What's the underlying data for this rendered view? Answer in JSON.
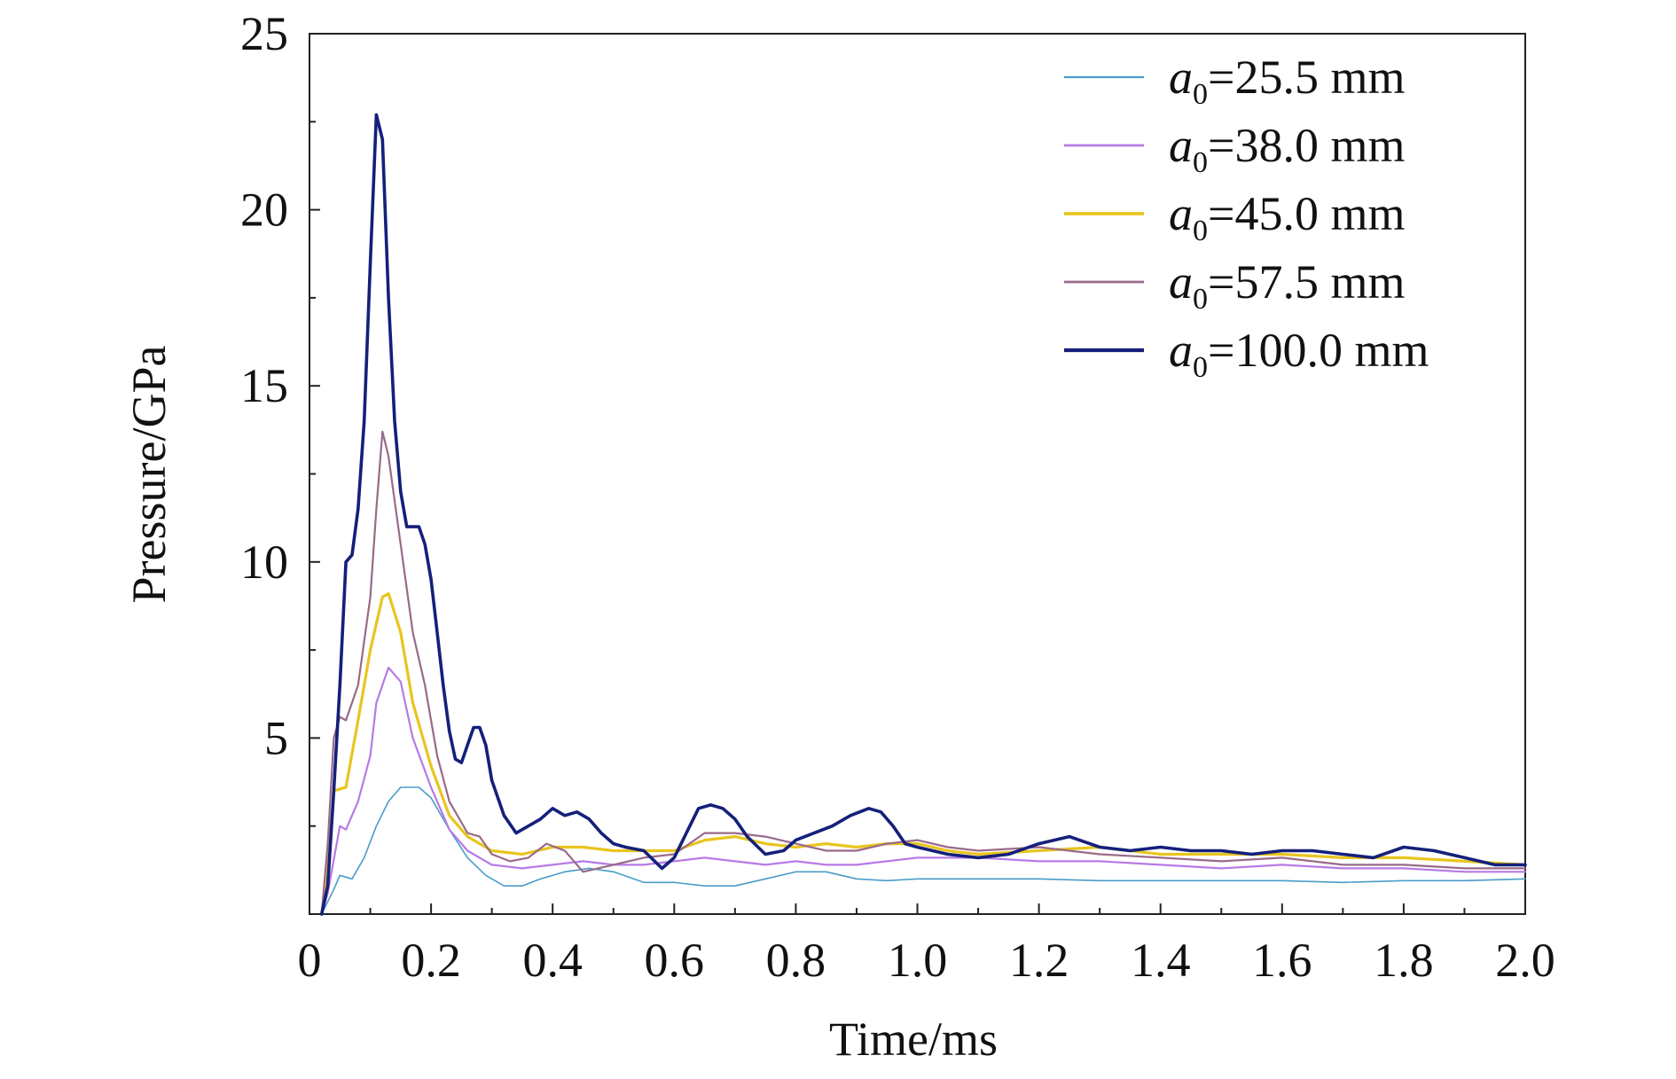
{
  "chart_data": {
    "type": "line",
    "xlabel": "Time/ms",
    "ylabel": "Pressure/GPa",
    "xlim": [
      0,
      2.0
    ],
    "ylim": [
      0,
      25
    ],
    "x_ticks": [
      "0",
      "0.2",
      "0.4",
      "0.6",
      "0.8",
      "1.0",
      "1.2",
      "1.4",
      "1.6",
      "1.8",
      "2.0"
    ],
    "y_ticks": [
      "5",
      "10",
      "15",
      "20",
      "25"
    ],
    "y_tick_values": [
      5,
      10,
      15,
      20,
      25
    ],
    "x_tick_values": [
      0,
      0.2,
      0.4,
      0.6,
      0.8,
      1.0,
      1.2,
      1.4,
      1.6,
      1.8,
      2.0
    ],
    "legend_position": "top-right",
    "grid": false,
    "series": [
      {
        "name": "=25.5 mm",
        "var": "a",
        "sub": "0",
        "color": "#4a9cc8",
        "width": 1.6,
        "points": [
          [
            0.02,
            0
          ],
          [
            0.04,
            0.7
          ],
          [
            0.05,
            1.1
          ],
          [
            0.07,
            1.0
          ],
          [
            0.09,
            1.6
          ],
          [
            0.11,
            2.5
          ],
          [
            0.13,
            3.2
          ],
          [
            0.15,
            3.6
          ],
          [
            0.18,
            3.6
          ],
          [
            0.2,
            3.3
          ],
          [
            0.23,
            2.4
          ],
          [
            0.26,
            1.6
          ],
          [
            0.29,
            1.1
          ],
          [
            0.32,
            0.8
          ],
          [
            0.35,
            0.8
          ],
          [
            0.38,
            1.0
          ],
          [
            0.42,
            1.2
          ],
          [
            0.46,
            1.3
          ],
          [
            0.5,
            1.2
          ],
          [
            0.55,
            0.9
          ],
          [
            0.6,
            0.9
          ],
          [
            0.65,
            0.8
          ],
          [
            0.7,
            0.8
          ],
          [
            0.75,
            1.0
          ],
          [
            0.8,
            1.2
          ],
          [
            0.85,
            1.2
          ],
          [
            0.9,
            1.0
          ],
          [
            0.95,
            0.95
          ],
          [
            1.0,
            1.0
          ],
          [
            1.1,
            1.0
          ],
          [
            1.2,
            1.0
          ],
          [
            1.3,
            0.95
          ],
          [
            1.4,
            0.95
          ],
          [
            1.5,
            0.95
          ],
          [
            1.6,
            0.95
          ],
          [
            1.7,
            0.9
          ],
          [
            1.8,
            0.95
          ],
          [
            1.9,
            0.95
          ],
          [
            2.0,
            1.0
          ]
        ]
      },
      {
        "name": "=38.0 mm",
        "var": "a",
        "sub": "0",
        "color": "#b87ae6",
        "width": 2.2,
        "points": [
          [
            0.02,
            0
          ],
          [
            0.03,
            0.6
          ],
          [
            0.05,
            2.5
          ],
          [
            0.06,
            2.4
          ],
          [
            0.08,
            3.2
          ],
          [
            0.1,
            4.5
          ],
          [
            0.11,
            6.0
          ],
          [
            0.13,
            7.0
          ],
          [
            0.15,
            6.6
          ],
          [
            0.17,
            5.0
          ],
          [
            0.2,
            3.6
          ],
          [
            0.23,
            2.4
          ],
          [
            0.26,
            1.8
          ],
          [
            0.3,
            1.4
          ],
          [
            0.35,
            1.3
          ],
          [
            0.4,
            1.4
          ],
          [
            0.45,
            1.5
          ],
          [
            0.5,
            1.4
          ],
          [
            0.55,
            1.4
          ],
          [
            0.6,
            1.5
          ],
          [
            0.65,
            1.6
          ],
          [
            0.7,
            1.5
          ],
          [
            0.75,
            1.4
          ],
          [
            0.8,
            1.5
          ],
          [
            0.85,
            1.4
          ],
          [
            0.9,
            1.4
          ],
          [
            0.95,
            1.5
          ],
          [
            1.0,
            1.6
          ],
          [
            1.1,
            1.6
          ],
          [
            1.2,
            1.5
          ],
          [
            1.3,
            1.5
          ],
          [
            1.4,
            1.4
          ],
          [
            1.5,
            1.3
          ],
          [
            1.6,
            1.4
          ],
          [
            1.7,
            1.3
          ],
          [
            1.8,
            1.3
          ],
          [
            1.9,
            1.2
          ],
          [
            2.0,
            1.2
          ]
        ]
      },
      {
        "name": "=45.0 mm",
        "var": "a",
        "sub": "0",
        "color": "#e8c51f",
        "width": 3.2,
        "points": [
          [
            0.02,
            0
          ],
          [
            0.03,
            1.2
          ],
          [
            0.04,
            3.5
          ],
          [
            0.06,
            3.6
          ],
          [
            0.08,
            5.5
          ],
          [
            0.1,
            7.5
          ],
          [
            0.12,
            9.0
          ],
          [
            0.13,
            9.1
          ],
          [
            0.15,
            8.0
          ],
          [
            0.17,
            6.0
          ],
          [
            0.2,
            4.2
          ],
          [
            0.23,
            2.8
          ],
          [
            0.26,
            2.2
          ],
          [
            0.3,
            1.8
          ],
          [
            0.35,
            1.7
          ],
          [
            0.4,
            1.9
          ],
          [
            0.45,
            1.9
          ],
          [
            0.5,
            1.8
          ],
          [
            0.55,
            1.8
          ],
          [
            0.6,
            1.8
          ],
          [
            0.65,
            2.1
          ],
          [
            0.7,
            2.2
          ],
          [
            0.75,
            2.0
          ],
          [
            0.8,
            1.9
          ],
          [
            0.85,
            2.0
          ],
          [
            0.9,
            1.9
          ],
          [
            0.95,
            2.0
          ],
          [
            1.0,
            2.0
          ],
          [
            1.05,
            1.8
          ],
          [
            1.1,
            1.7
          ],
          [
            1.2,
            1.8
          ],
          [
            1.3,
            1.9
          ],
          [
            1.4,
            1.7
          ],
          [
            1.5,
            1.7
          ],
          [
            1.6,
            1.7
          ],
          [
            1.7,
            1.6
          ],
          [
            1.8,
            1.6
          ],
          [
            1.9,
            1.5
          ],
          [
            2.0,
            1.4
          ]
        ]
      },
      {
        "name": "=57.5 mm",
        "var": "a",
        "sub": "0",
        "color": "#9a6a8a",
        "width": 2.2,
        "points": [
          [
            0.02,
            0
          ],
          [
            0.03,
            2.0
          ],
          [
            0.04,
            5.0
          ],
          [
            0.05,
            5.6
          ],
          [
            0.06,
            5.5
          ],
          [
            0.08,
            6.5
          ],
          [
            0.1,
            9.0
          ],
          [
            0.11,
            11.5
          ],
          [
            0.12,
            13.7
          ],
          [
            0.13,
            13.0
          ],
          [
            0.15,
            10.5
          ],
          [
            0.17,
            8.0
          ],
          [
            0.19,
            6.5
          ],
          [
            0.21,
            4.5
          ],
          [
            0.23,
            3.2
          ],
          [
            0.26,
            2.3
          ],
          [
            0.28,
            2.2
          ],
          [
            0.3,
            1.7
          ],
          [
            0.33,
            1.5
          ],
          [
            0.36,
            1.6
          ],
          [
            0.39,
            2.0
          ],
          [
            0.42,
            1.8
          ],
          [
            0.45,
            1.2
          ],
          [
            0.5,
            1.4
          ],
          [
            0.55,
            1.6
          ],
          [
            0.6,
            1.7
          ],
          [
            0.65,
            2.3
          ],
          [
            0.7,
            2.3
          ],
          [
            0.75,
            2.2
          ],
          [
            0.8,
            2.0
          ],
          [
            0.85,
            1.8
          ],
          [
            0.9,
            1.8
          ],
          [
            0.95,
            2.0
          ],
          [
            1.0,
            2.1
          ],
          [
            1.05,
            1.9
          ],
          [
            1.1,
            1.8
          ],
          [
            1.2,
            1.9
          ],
          [
            1.3,
            1.7
          ],
          [
            1.4,
            1.6
          ],
          [
            1.5,
            1.5
          ],
          [
            1.6,
            1.6
          ],
          [
            1.7,
            1.4
          ],
          [
            1.8,
            1.4
          ],
          [
            1.9,
            1.3
          ],
          [
            2.0,
            1.3
          ]
        ]
      },
      {
        "name": "=100.0 mm",
        "var": "a",
        "sub": "0",
        "color": "#14207a",
        "width": 3.6,
        "points": [
          [
            0.02,
            0
          ],
          [
            0.03,
            0.8
          ],
          [
            0.04,
            3.5
          ],
          [
            0.05,
            6.5
          ],
          [
            0.06,
            10.0
          ],
          [
            0.07,
            10.2
          ],
          [
            0.08,
            11.5
          ],
          [
            0.09,
            14.0
          ],
          [
            0.1,
            18.5
          ],
          [
            0.11,
            22.7
          ],
          [
            0.12,
            22.0
          ],
          [
            0.13,
            17.5
          ],
          [
            0.14,
            14.0
          ],
          [
            0.15,
            12.0
          ],
          [
            0.16,
            11.0
          ],
          [
            0.18,
            11.0
          ],
          [
            0.19,
            10.5
          ],
          [
            0.2,
            9.5
          ],
          [
            0.21,
            8.0
          ],
          [
            0.22,
            6.5
          ],
          [
            0.23,
            5.2
          ],
          [
            0.24,
            4.4
          ],
          [
            0.25,
            4.3
          ],
          [
            0.26,
            4.8
          ],
          [
            0.27,
            5.3
          ],
          [
            0.28,
            5.3
          ],
          [
            0.29,
            4.8
          ],
          [
            0.3,
            3.8
          ],
          [
            0.32,
            2.8
          ],
          [
            0.34,
            2.3
          ],
          [
            0.36,
            2.5
          ],
          [
            0.38,
            2.7
          ],
          [
            0.4,
            3.0
          ],
          [
            0.42,
            2.8
          ],
          [
            0.44,
            2.9
          ],
          [
            0.46,
            2.7
          ],
          [
            0.48,
            2.3
          ],
          [
            0.5,
            2.0
          ],
          [
            0.52,
            1.9
          ],
          [
            0.55,
            1.8
          ],
          [
            0.58,
            1.3
          ],
          [
            0.6,
            1.6
          ],
          [
            0.62,
            2.3
          ],
          [
            0.64,
            3.0
          ],
          [
            0.66,
            3.1
          ],
          [
            0.68,
            3.0
          ],
          [
            0.7,
            2.7
          ],
          [
            0.72,
            2.2
          ],
          [
            0.75,
            1.7
          ],
          [
            0.78,
            1.8
          ],
          [
            0.8,
            2.1
          ],
          [
            0.83,
            2.3
          ],
          [
            0.86,
            2.5
          ],
          [
            0.89,
            2.8
          ],
          [
            0.92,
            3.0
          ],
          [
            0.94,
            2.9
          ],
          [
            0.96,
            2.5
          ],
          [
            0.98,
            2.0
          ],
          [
            1.0,
            1.9
          ],
          [
            1.05,
            1.7
          ],
          [
            1.1,
            1.6
          ],
          [
            1.15,
            1.7
          ],
          [
            1.2,
            2.0
          ],
          [
            1.25,
            2.2
          ],
          [
            1.3,
            1.9
          ],
          [
            1.35,
            1.8
          ],
          [
            1.4,
            1.9
          ],
          [
            1.45,
            1.8
          ],
          [
            1.5,
            1.8
          ],
          [
            1.55,
            1.7
          ],
          [
            1.6,
            1.8
          ],
          [
            1.65,
            1.8
          ],
          [
            1.7,
            1.7
          ],
          [
            1.75,
            1.6
          ],
          [
            1.8,
            1.9
          ],
          [
            1.85,
            1.8
          ],
          [
            1.9,
            1.6
          ],
          [
            1.95,
            1.4
          ],
          [
            2.0,
            1.4
          ]
        ]
      }
    ]
  }
}
